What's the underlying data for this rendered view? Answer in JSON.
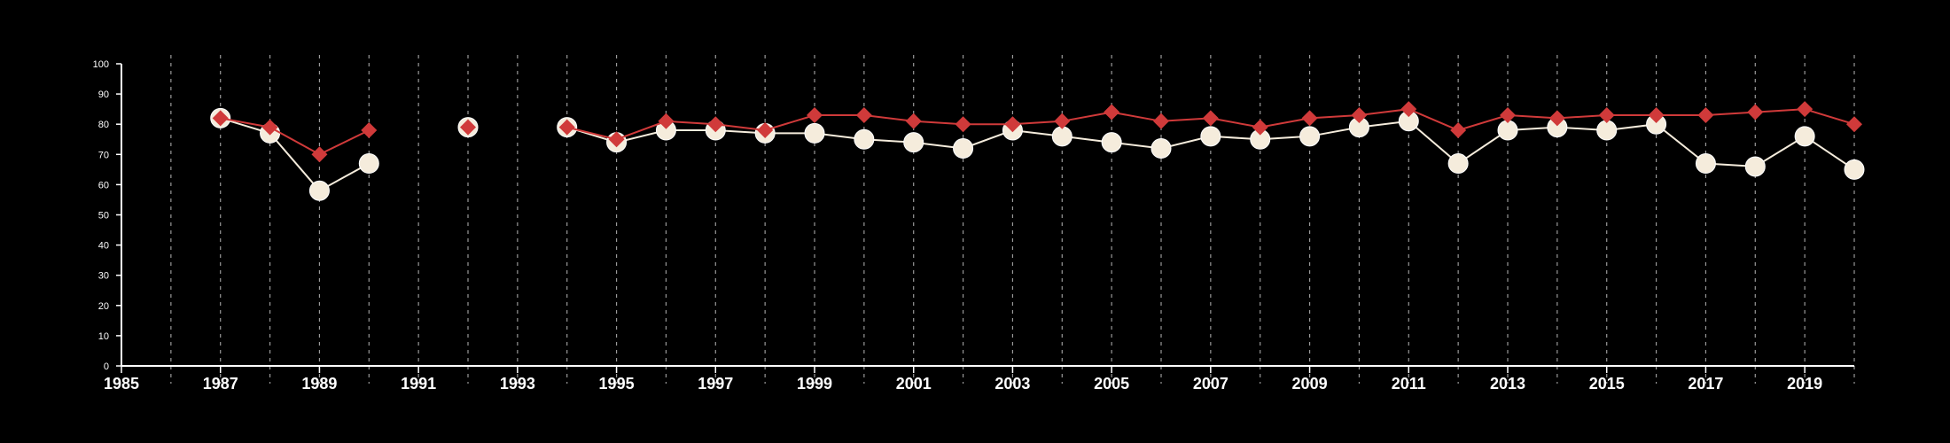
{
  "chart_data": {
    "type": "line",
    "x_ticks": [
      1985,
      1987,
      1989,
      1991,
      1993,
      1995,
      1997,
      1999,
      2001,
      2003,
      2005,
      2007,
      2009,
      2011,
      2013,
      2015,
      2017,
      2019
    ],
    "y_ticks": [
      0,
      10,
      20,
      30,
      40,
      50,
      60,
      70,
      80,
      90,
      100
    ],
    "xlim": [
      1985,
      2020
    ],
    "ylim": [
      0,
      100
    ],
    "grid": "vertical dashed lines at each year",
    "series": [
      {
        "marker": "diamond",
        "color": "#d03a3a",
        "points": [
          [
            1987,
            82
          ],
          [
            1988,
            79
          ],
          [
            1989,
            70
          ],
          [
            1990,
            78
          ],
          [
            1992,
            79
          ],
          [
            1994,
            79
          ],
          [
            1995,
            75
          ],
          [
            1996,
            81
          ],
          [
            1997,
            80
          ],
          [
            1998,
            78
          ],
          [
            1999,
            83
          ],
          [
            2000,
            83
          ],
          [
            2001,
            81
          ],
          [
            2002,
            80
          ],
          [
            2003,
            80
          ],
          [
            2004,
            81
          ],
          [
            2005,
            84
          ],
          [
            2006,
            81
          ],
          [
            2007,
            82
          ],
          [
            2008,
            79
          ],
          [
            2009,
            82
          ],
          [
            2010,
            83
          ],
          [
            2011,
            85
          ],
          [
            2012,
            78
          ],
          [
            2013,
            83
          ],
          [
            2014,
            82
          ],
          [
            2015,
            83
          ],
          [
            2016,
            83
          ],
          [
            2017,
            83
          ],
          [
            2018,
            84
          ],
          [
            2019,
            85
          ],
          [
            2020,
            80
          ]
        ]
      },
      {
        "marker": "circle",
        "color": "#f5ecdc",
        "points": [
          [
            1987,
            82
          ],
          [
            1988,
            77
          ],
          [
            1989,
            58
          ],
          [
            1990,
            67
          ],
          [
            1992,
            79
          ],
          [
            1994,
            79
          ],
          [
            1995,
            74
          ],
          [
            1996,
            78
          ],
          [
            1997,
            78
          ],
          [
            1998,
            77
          ],
          [
            1999,
            77
          ],
          [
            2000,
            75
          ],
          [
            2001,
            74
          ],
          [
            2002,
            72
          ],
          [
            2003,
            78
          ],
          [
            2004,
            76
          ],
          [
            2005,
            74
          ],
          [
            2006,
            72
          ],
          [
            2007,
            76
          ],
          [
            2008,
            75
          ],
          [
            2009,
            76
          ],
          [
            2010,
            79
          ],
          [
            2011,
            81
          ],
          [
            2012,
            67
          ],
          [
            2013,
            78
          ],
          [
            2014,
            79
          ],
          [
            2015,
            78
          ],
          [
            2016,
            80
          ],
          [
            2017,
            67
          ],
          [
            2018,
            66
          ],
          [
            2019,
            76
          ],
          [
            2020,
            65
          ]
        ]
      }
    ]
  }
}
